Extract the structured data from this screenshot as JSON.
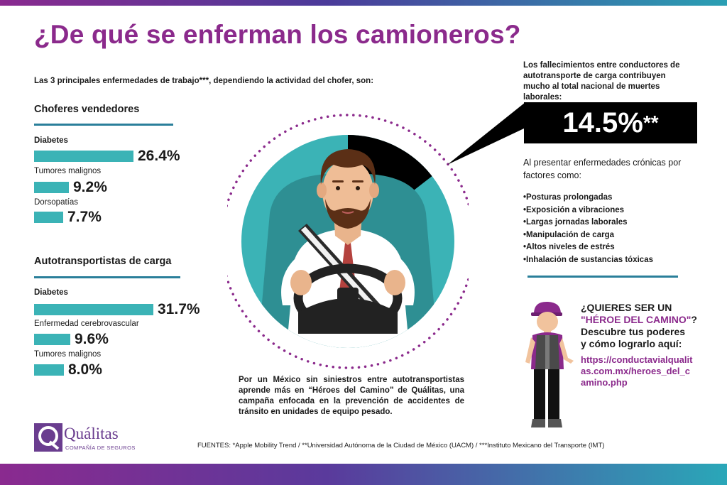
{
  "header": {
    "title": "¿De qué se enferman los camioneros?",
    "subtitle": "Las 3 principales enfermedades de trabajo***,  dependiendo la actividad del chofer, son:"
  },
  "left": {
    "groups": [
      {
        "title": "Choferes vendedores",
        "items": [
          {
            "label": "Diabetes",
            "value": "26.4%",
            "pct": 26.4
          },
          {
            "label": "Tumores malignos",
            "value": "9.2%",
            "pct": 9.2
          },
          {
            "label": "Dorsopatías",
            "value": "7.7%",
            "pct": 7.7
          }
        ]
      },
      {
        "title": "Autotransportistas de carga",
        "items": [
          {
            "label": "Diabetes",
            "value": "31.7%",
            "pct": 31.7
          },
          {
            "label": "Enfermedad cerebrovascular",
            "value": "9.6%",
            "pct": 9.6
          },
          {
            "label": "Tumores malignos",
            "value": "8.0%",
            "pct": 8.0
          }
        ]
      }
    ]
  },
  "right": {
    "intro": "Los fallecimientos entre conductores de autotransporte de carga contribuyen mucho al total nacional de muertes laborales:",
    "big_value": "14.5%",
    "big_stars": "**",
    "pie_share": 14.5,
    "chronic_text": "Al presentar enfermedades crónicas por factores como:",
    "factors": [
      "•Posturas prolongadas",
      "•Exposición a vibraciones",
      "•Largas jornadas laborales",
      "•Manipulación de carga",
      "•Altos niveles de estrés",
      "•Inhalación de sustancias tóxicas"
    ]
  },
  "hero": {
    "line1": "¿QUIERES SER UN",
    "line2": "\"HÉROE DEL CAMINO\"",
    "line2_end": "?",
    "line3": "Descubre tus poderes",
    "line4": "y cómo lograrlo aquí:",
    "link": "https://conductavialqualitas.com.mx/heroes_del_camino.php"
  },
  "campaign_text": "Por un México sin siniestros entre autotransportistas aprende más en “Héroes del Camino” de Quálitas, una campaña enfocada en la prevención de accidentes de tránsito en unidades de equipo pesado.",
  "sources": "FUENTES:  *Apple Mobility Trend / **Universidad Autónoma de la Ciudad de México (UACM) / ***Instituto Mexicano del Transporte (IMT)",
  "logo": {
    "name": "Quálitas",
    "tagline": "COMPAÑÍA DE SEGUROS"
  },
  "colors": {
    "title": "#8b2a8c",
    "bar": "#3bb3b6",
    "circle": "#3bb3b6",
    "line": "#2a7f9a",
    "dots": "#8b2a8c"
  }
}
